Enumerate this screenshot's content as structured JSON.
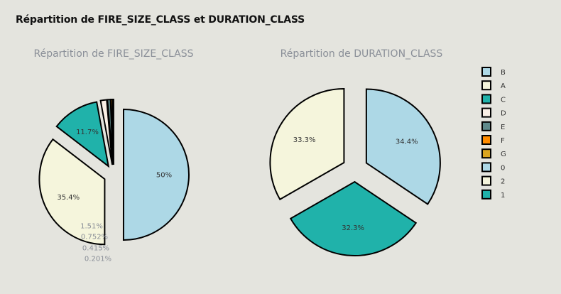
{
  "title": "Répartition de FIRE_SIZE_CLASS et DURATION_CLASS",
  "colors": {
    "B": "#add8e6",
    "A": "#f5f5dc",
    "C": "#20b2aa",
    "D": "#faf0e6",
    "E": "#5f8a8b",
    "F": "#ff8c00",
    "G": "#daa520",
    "0": "#add8e6",
    "2": "#f5f5dc",
    "1": "#20b2aa"
  },
  "chart_data": [
    {
      "type": "pie",
      "title": "Répartition de FIRE_SIZE_CLASS",
      "categories": [
        "B",
        "A",
        "C",
        "D",
        "E",
        "F",
        "G"
      ],
      "values": [
        50,
        35.4,
        11.7,
        1.51,
        0.752,
        0.415,
        0.201
      ],
      "labels": [
        "50%",
        "35.4%",
        "11.7%",
        "1.51%",
        "0.752%",
        "0.415%",
        "0.201%"
      ]
    },
    {
      "type": "pie",
      "title": "Répartition de DURATION_CLASS",
      "categories": [
        "0",
        "1",
        "2"
      ],
      "values": [
        34.4,
        32.3,
        33.3
      ],
      "labels": [
        "34.4%",
        "32.3%",
        "33.3%"
      ]
    }
  ],
  "legend": {
    "position": "right",
    "items": [
      "B",
      "A",
      "C",
      "D",
      "E",
      "F",
      "G",
      "0",
      "2",
      "1"
    ]
  }
}
